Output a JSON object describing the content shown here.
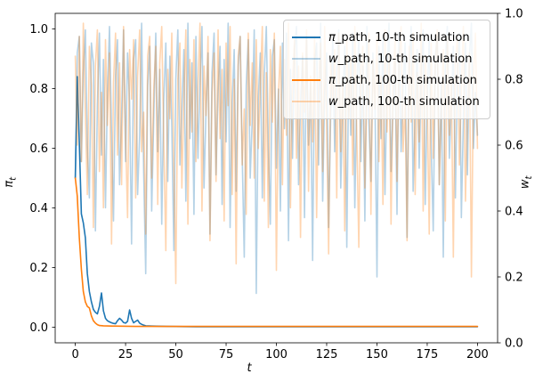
{
  "chart_data": {
    "type": "line",
    "title": "",
    "xlabel": "t",
    "ylabel_left": {
      "base": "π",
      "sub": "t"
    },
    "ylabel_right": {
      "base": "w",
      "sub": "t"
    },
    "grid": false,
    "legend_position": "upper right",
    "x_axis": {
      "lim": [
        -10,
        210
      ],
      "tick_values": [
        0,
        25,
        50,
        75,
        100,
        125,
        150,
        175,
        200
      ],
      "tick_labels": [
        "0",
        "25",
        "50",
        "75",
        "100",
        "125",
        "150",
        "175",
        "200"
      ]
    },
    "y_axis_left": {
      "lim": [
        -0.052,
        1.052
      ],
      "tick_values": [
        0.0,
        0.2,
        0.4,
        0.6,
        0.8,
        1.0
      ],
      "tick_labels": [
        "0.0",
        "0.2",
        "0.4",
        "0.6",
        "0.8",
        "1.0"
      ]
    },
    "y_axis_right": {
      "lim": [
        0,
        1
      ],
      "tick_values": [
        0.0,
        0.2,
        0.4,
        0.6,
        0.8,
        1.0
      ],
      "tick_labels": [
        "0.0",
        "0.2",
        "0.4",
        "0.6",
        "0.8",
        "1.0"
      ]
    },
    "series": [
      {
        "name": "pi_path_10",
        "label_symbol": "π",
        "label_rest": "_path, 10-th simulation",
        "color": "#1f77b4",
        "opacity": 1,
        "axis": "left",
        "points": [
          [
            0,
            0.5
          ],
          [
            1,
            0.84
          ],
          [
            2,
            0.62
          ],
          [
            3,
            0.38
          ],
          [
            4,
            0.35
          ],
          [
            5,
            0.3
          ],
          [
            6,
            0.18
          ],
          [
            7,
            0.12
          ],
          [
            8,
            0.085
          ],
          [
            9,
            0.06
          ],
          [
            10,
            0.05
          ],
          [
            11,
            0.045
          ],
          [
            12,
            0.07
          ],
          [
            13,
            0.115
          ],
          [
            14,
            0.055
          ],
          [
            15,
            0.03
          ],
          [
            16,
            0.022
          ],
          [
            17,
            0.018
          ],
          [
            18,
            0.015
          ],
          [
            19,
            0.013
          ],
          [
            20,
            0.012
          ],
          [
            21,
            0.022
          ],
          [
            22,
            0.03
          ],
          [
            23,
            0.024
          ],
          [
            24,
            0.016
          ],
          [
            25,
            0.014
          ],
          [
            26,
            0.02
          ],
          [
            27,
            0.058
          ],
          [
            28,
            0.03
          ],
          [
            29,
            0.015
          ],
          [
            30,
            0.02
          ],
          [
            31,
            0.024
          ],
          [
            32,
            0.014
          ],
          [
            33,
            0.01
          ],
          [
            34,
            0.007
          ],
          [
            35,
            0.005
          ],
          [
            38,
            0.004
          ],
          [
            45,
            0.003
          ],
          [
            60,
            0.002
          ],
          [
            100,
            0.002
          ],
          [
            150,
            0.002
          ],
          [
            200,
            0.002
          ]
        ]
      },
      {
        "name": "w_path_10",
        "label_symbol": "w",
        "label_rest": "_path, 10-th simulation",
        "color": "#1f77b4",
        "opacity": 0.33,
        "axis": "right",
        "values": [
          0.5,
          0.88,
          0.93,
          0.55,
          0.82,
          0.95,
          0.6,
          0.44,
          0.91,
          0.85,
          0.34,
          0.72,
          0.94,
          0.57,
          0.86,
          0.41,
          0.76,
          0.96,
          0.64,
          0.37,
          0.81,
          0.92,
          0.48,
          0.69,
          0.95,
          0.55,
          0.88,
          0.73,
          0.3,
          0.86,
          0.92,
          0.45,
          0.63,
          0.97,
          0.52,
          0.21,
          0.78,
          0.9,
          0.4,
          0.68,
          0.94,
          0.58,
          0.83,
          0.36,
          0.74,
          0.91,
          0.49,
          0.87,
          0.66,
          0.28,
          0.8,
          0.95,
          0.54,
          0.71,
          0.89,
          0.43,
          0.97,
          0.62,
          0.85,
          0.39,
          0.93,
          0.56,
          0.79,
          0.96,
          0.47,
          0.7,
          0.88,
          0.33,
          0.82,
          0.94,
          0.51,
          0.76,
          0.9,
          0.42,
          0.86,
          0.61,
          0.97,
          0.35,
          0.73,
          0.89,
          0.46,
          0.84,
          0.93,
          0.57,
          0.26,
          0.78,
          0.92,
          0.5,
          0.68,
          0.95,
          0.15,
          0.74,
          0.88,
          0.44,
          0.81,
          0.96,
          0.59,
          0.36,
          0.87,
          0.92,
          0.53,
          0.77,
          0.4,
          0.91,
          0.65,
          0.94,
          0.31,
          0.83,
          0.56,
          0.89,
          0.96,
          0.48,
          0.72,
          0.87,
          0.38,
          0.93,
          0.6,
          0.79,
          0.25,
          0.85,
          0.91,
          0.54,
          0.97,
          0.43,
          0.76,
          0.88,
          0.35,
          0.69,
          0.92,
          0.58,
          0.82,
          0.95,
          0.47,
          0.73,
          0.9,
          0.29,
          0.86,
          0.63,
          0.94,
          0.41,
          0.78,
          0.92,
          0.55,
          0.84,
          0.37,
          0.96,
          0.67,
          0.49,
          0.88,
          0.75,
          0.2,
          0.9,
          0.62,
          0.93,
          0.45,
          0.8,
          0.97,
          0.52,
          0.71,
          0.86,
          0.39,
          0.94,
          0.58,
          0.77,
          0.91,
          0.32,
          0.84,
          0.96,
          0.46,
          0.7,
          0.89,
          0.53,
          0.81,
          0.95,
          0.42,
          0.74,
          0.92,
          0.6,
          0.34,
          0.87,
          0.93,
          0.48,
          0.79,
          0.26,
          0.85,
          0.96,
          0.56,
          0.72,
          0.9,
          0.44,
          0.82,
          0.94,
          0.38,
          0.68,
          0.91,
          0.51,
          0.87,
          0.97,
          0.59,
          0.76,
          0.63
        ]
      },
      {
        "name": "pi_path_100",
        "label_symbol": "π",
        "label_rest": "_path, 100-th simulation",
        "color": "#ff7f0e",
        "opacity": 1,
        "axis": "left",
        "points": [
          [
            0,
            0.5
          ],
          [
            1,
            0.44
          ],
          [
            2,
            0.3
          ],
          [
            3,
            0.195
          ],
          [
            4,
            0.12
          ],
          [
            5,
            0.085
          ],
          [
            6,
            0.07
          ],
          [
            7,
            0.065
          ],
          [
            8,
            0.038
          ],
          [
            9,
            0.022
          ],
          [
            10,
            0.014
          ],
          [
            11,
            0.009
          ],
          [
            12,
            0.006
          ],
          [
            14,
            0.005
          ],
          [
            18,
            0.004
          ],
          [
            30,
            0.003
          ],
          [
            60,
            0.003
          ],
          [
            120,
            0.003
          ],
          [
            200,
            0.003
          ]
        ]
      },
      {
        "name": "w_path_100",
        "label_symbol": "w",
        "label_rest": "_path, 100-th simulation",
        "color": "#ff7f0e",
        "opacity": 0.33,
        "axis": "right",
        "values": [
          0.87,
          0.6,
          0.93,
          0.55,
          0.97,
          0.7,
          0.45,
          0.9,
          0.78,
          0.35,
          0.84,
          0.95,
          0.52,
          0.76,
          0.41,
          0.92,
          0.66,
          0.88,
          0.3,
          0.79,
          0.94,
          0.57,
          0.85,
          0.48,
          0.96,
          0.63,
          0.38,
          0.89,
          0.74,
          0.92,
          0.44,
          0.81,
          0.95,
          0.58,
          0.7,
          0.33,
          0.87,
          0.93,
          0.5,
          0.77,
          0.9,
          0.42,
          0.85,
          0.96,
          0.61,
          0.28,
          0.83,
          0.68,
          0.94,
          0.53,
          0.18,
          0.8,
          0.91,
          0.47,
          0.75,
          0.95,
          0.36,
          0.86,
          0.64,
          0.92,
          0.55,
          0.78,
          0.97,
          0.4,
          0.84,
          0.69,
          0.93,
          0.31,
          0.76,
          0.88,
          0.49,
          0.95,
          0.62,
          0.83,
          0.37,
          0.91,
          0.72,
          0.96,
          0.45,
          0.8,
          0.24,
          0.87,
          0.93,
          0.54,
          0.71,
          0.39,
          0.94,
          0.66,
          0.85,
          0.5,
          0.92,
          0.59,
          0.78,
          0.96,
          0.43,
          0.82,
          0.35,
          0.89,
          0.67,
          0.94,
          0.22,
          0.75,
          0.9,
          0.48,
          0.86,
          0.63,
          0.97,
          0.41,
          0.79,
          0.92,
          0.56,
          0.84,
          0.32,
          0.88,
          0.7,
          0.95,
          0.46,
          0.81,
          0.61,
          0.93,
          0.38,
          0.77,
          0.91,
          0.52,
          0.96,
          0.65,
          0.27,
          0.85,
          0.73,
          0.89,
          0.44,
          0.94,
          0.58,
          0.8,
          0.34,
          0.92,
          0.68,
          0.87,
          0.51,
          0.96,
          0.62,
          0.29,
          0.83,
          0.9,
          0.47,
          0.76,
          0.94,
          0.39,
          0.86,
          0.71,
          0.93,
          0.55,
          0.81,
          0.42,
          0.95,
          0.64,
          0.88,
          0.36,
          0.78,
          0.92,
          0.49,
          0.85,
          0.96,
          0.58,
          0.73,
          0.31,
          0.9,
          0.67,
          0.94,
          0.45,
          0.82,
          0.61,
          0.97,
          0.4,
          0.87,
          0.75,
          0.33,
          0.91,
          0.56,
          0.84,
          0.95,
          0.48,
          0.7,
          0.89,
          0.37,
          0.93,
          0.63,
          0.8,
          0.26,
          0.86,
          0.92,
          0.54,
          0.77,
          0.96,
          0.43,
          0.69,
          0.88,
          0.2,
          0.81,
          0.94,
          0.59
        ]
      }
    ]
  }
}
